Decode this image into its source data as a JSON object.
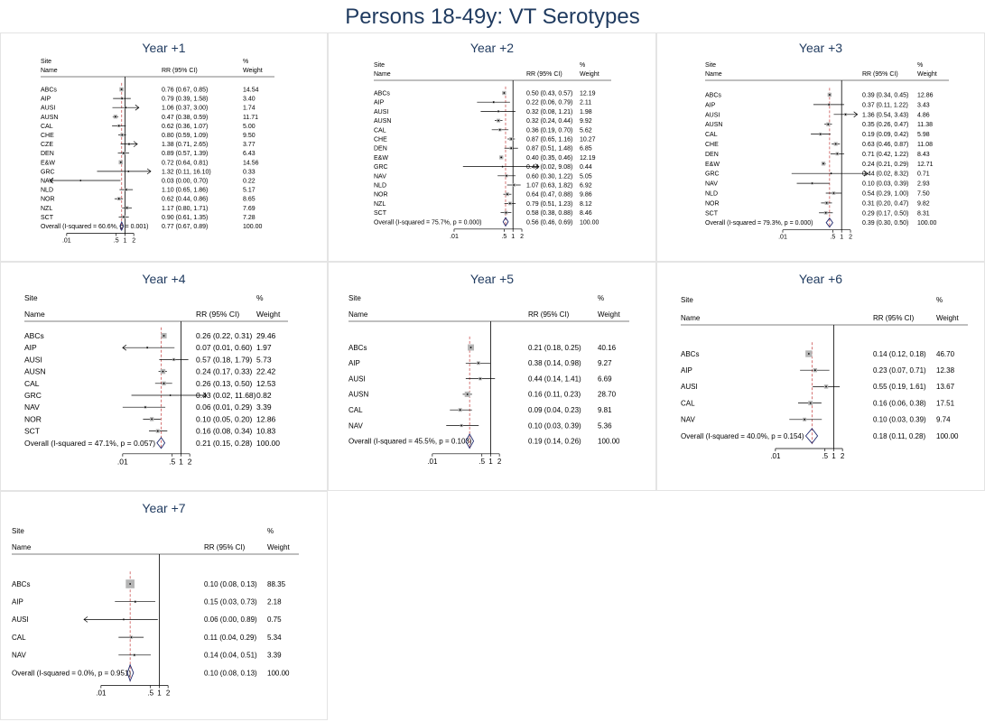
{
  "title": "Persons 18-49y: VT Serotypes",
  "headers": {
    "site": "Site",
    "name": "Name",
    "rr": "RR (95% CI)",
    "pct": "%",
    "weight": "Weight"
  },
  "chart_data": [
    {
      "type": "forest",
      "title": "Year +1",
      "x_scale": "log",
      "xlim": [
        0.004,
        5
      ],
      "x_ticks": [
        ".01",
        ".5",
        "1",
        "2"
      ],
      "x_tick_values": [
        0.01,
        0.5,
        1,
        2
      ],
      "reference_line": 1,
      "pooled_line": 0.77,
      "rows": [
        {
          "label": "ABCs",
          "rr": 0.76,
          "lo": 0.67,
          "hi": 0.85,
          "weight": 14.54,
          "text": "0.76 (0.67, 0.85)",
          "weight_text": "14.54"
        },
        {
          "label": "AIP",
          "rr": 0.79,
          "lo": 0.39,
          "hi": 1.58,
          "weight": 3.4,
          "text": "0.79 (0.39, 1.58)",
          "weight_text": "3.40"
        },
        {
          "label": "AUSI",
          "rr": 1.06,
          "lo": 0.37,
          "hi": 3.0,
          "weight": 1.74,
          "text": "1.06 (0.37, 3.00)",
          "weight_text": "1.74",
          "arrow_right": true
        },
        {
          "label": "AUSN",
          "rr": 0.47,
          "lo": 0.38,
          "hi": 0.59,
          "weight": 11.71,
          "text": "0.47 (0.38, 0.59)",
          "weight_text": "11.71"
        },
        {
          "label": "CAL",
          "rr": 0.62,
          "lo": 0.36,
          "hi": 1.07,
          "weight": 5.0,
          "text": "0.62 (0.36, 1.07)",
          "weight_text": "5.00"
        },
        {
          "label": "CHE",
          "rr": 0.8,
          "lo": 0.59,
          "hi": 1.09,
          "weight": 9.5,
          "text": "0.80 (0.59, 1.09)",
          "weight_text": "9.50"
        },
        {
          "label": "CZE",
          "rr": 1.38,
          "lo": 0.71,
          "hi": 2.65,
          "weight": 3.77,
          "text": "1.38 (0.71, 2.65)",
          "weight_text": "3.77",
          "arrow_right": true
        },
        {
          "label": "DEN",
          "rr": 0.89,
          "lo": 0.57,
          "hi": 1.39,
          "weight": 6.43,
          "text": "0.89 (0.57, 1.39)",
          "weight_text": "6.43"
        },
        {
          "label": "E&W",
          "rr": 0.72,
          "lo": 0.64,
          "hi": 0.81,
          "weight": 14.56,
          "text": "0.72 (0.64, 0.81)",
          "weight_text": "14.56"
        },
        {
          "label": "GRC",
          "rr": 1.32,
          "lo": 0.11,
          "hi": 16.1,
          "weight": 0.33,
          "text": "1.32 (0.11, 16.10)",
          "weight_text": "0.33",
          "arrow_right": true
        },
        {
          "label": "NAV",
          "rr": 0.03,
          "lo": 0.0,
          "hi": 0.7,
          "weight": 0.22,
          "text": "0.03 (0.00, 0.70)",
          "weight_text": "0.22",
          "arrow_left": true
        },
        {
          "label": "NLD",
          "rr": 1.1,
          "lo": 0.65,
          "hi": 1.86,
          "weight": 5.17,
          "text": "1.10 (0.65, 1.86)",
          "weight_text": "5.17"
        },
        {
          "label": "NOR",
          "rr": 0.62,
          "lo": 0.44,
          "hi": 0.86,
          "weight": 8.65,
          "text": "0.62 (0.44, 0.86)",
          "weight_text": "8.65"
        },
        {
          "label": "NZL",
          "rr": 1.17,
          "lo": 0.8,
          "hi": 1.71,
          "weight": 7.69,
          "text": "1.17 (0.80, 1.71)",
          "weight_text": "7.69"
        },
        {
          "label": "SCT",
          "rr": 0.9,
          "lo": 0.61,
          "hi": 1.35,
          "weight": 7.28,
          "text": "0.90 (0.61, 1.35)",
          "weight_text": "7.28"
        }
      ],
      "overall": {
        "label": "Overall  (I-squared = 60.6%, p = 0.001)",
        "rr": 0.77,
        "lo": 0.67,
        "hi": 0.89,
        "text": "0.77 (0.67, 0.89)",
        "weight_text": "100.00"
      }
    },
    {
      "type": "forest",
      "title": "Year +2",
      "x_scale": "log",
      "xlim": [
        0.004,
        5
      ],
      "x_ticks": [
        ".01",
        ".5",
        "1",
        "2"
      ],
      "x_tick_values": [
        0.01,
        0.5,
        1,
        2
      ],
      "reference_line": 1,
      "pooled_line": 0.56,
      "rows": [
        {
          "label": "ABCs",
          "rr": 0.5,
          "lo": 0.43,
          "hi": 0.57,
          "weight": 12.19,
          "text": "0.50 (0.43, 0.57)",
          "weight_text": "12.19"
        },
        {
          "label": "AIP",
          "rr": 0.22,
          "lo": 0.06,
          "hi": 0.79,
          "weight": 2.11,
          "text": "0.22 (0.06, 0.79)",
          "weight_text": "2.11"
        },
        {
          "label": "AUSI",
          "rr": 0.32,
          "lo": 0.08,
          "hi": 1.21,
          "weight": 1.98,
          "text": "0.32 (0.08, 1.21)",
          "weight_text": "1.98"
        },
        {
          "label": "AUSN",
          "rr": 0.32,
          "lo": 0.24,
          "hi": 0.44,
          "weight": 9.92,
          "text": "0.32 (0.24, 0.44)",
          "weight_text": "9.92"
        },
        {
          "label": "CAL",
          "rr": 0.36,
          "lo": 0.19,
          "hi": 0.7,
          "weight": 5.62,
          "text": "0.36 (0.19, 0.70)",
          "weight_text": "5.62"
        },
        {
          "label": "CHE",
          "rr": 0.87,
          "lo": 0.65,
          "hi": 1.16,
          "weight": 10.27,
          "text": "0.87 (0.65, 1.16)",
          "weight_text": "10.27"
        },
        {
          "label": "DEN",
          "rr": 0.87,
          "lo": 0.51,
          "hi": 1.48,
          "weight": 6.85,
          "text": "0.87 (0.51, 1.48)",
          "weight_text": "6.85"
        },
        {
          "label": "E&W",
          "rr": 0.4,
          "lo": 0.35,
          "hi": 0.46,
          "weight": 12.19,
          "text": "0.40 (0.35, 0.46)",
          "weight_text": "12.19"
        },
        {
          "label": "GRC",
          "rr": 0.44,
          "lo": 0.02,
          "hi": 9.08,
          "weight": 0.44,
          "text": "0.44 (0.02, 9.08)",
          "weight_text": "0.44",
          "arrow_right": true
        },
        {
          "label": "NAV",
          "rr": 0.6,
          "lo": 0.3,
          "hi": 1.22,
          "weight": 5.05,
          "text": "0.60 (0.30, 1.22)",
          "weight_text": "5.05"
        },
        {
          "label": "NLD",
          "rr": 1.07,
          "lo": 0.63,
          "hi": 1.82,
          "weight": 6.92,
          "text": "1.07 (0.63, 1.82)",
          "weight_text": "6.92"
        },
        {
          "label": "NOR",
          "rr": 0.64,
          "lo": 0.47,
          "hi": 0.88,
          "weight": 9.86,
          "text": "0.64 (0.47, 0.88)",
          "weight_text": "9.86"
        },
        {
          "label": "NZL",
          "rr": 0.79,
          "lo": 0.51,
          "hi": 1.23,
          "weight": 8.12,
          "text": "0.79 (0.51, 1.23)",
          "weight_text": "8.12"
        },
        {
          "label": "SCT",
          "rr": 0.58,
          "lo": 0.38,
          "hi": 0.88,
          "weight": 8.46,
          "text": "0.58 (0.38, 0.88)",
          "weight_text": "8.46"
        }
      ],
      "overall": {
        "label": "Overall  (I-squared = 75.7%, p = 0.000)",
        "rr": 0.56,
        "lo": 0.46,
        "hi": 0.69,
        "text": "0.56 (0.46, 0.69)",
        "weight_text": "100.00"
      }
    },
    {
      "type": "forest",
      "title": "Year +3",
      "x_scale": "log",
      "xlim": [
        0.004,
        5
      ],
      "x_ticks": [
        ".01",
        ".5",
        "1",
        "2"
      ],
      "x_tick_values": [
        0.01,
        0.5,
        1,
        2
      ],
      "reference_line": 1,
      "pooled_line": 0.39,
      "rows": [
        {
          "label": "ABCs",
          "rr": 0.39,
          "lo": 0.34,
          "hi": 0.45,
          "weight": 12.86,
          "text": "0.39 (0.34, 0.45)",
          "weight_text": "12.86"
        },
        {
          "label": "AIP",
          "rr": 0.37,
          "lo": 0.11,
          "hi": 1.22,
          "weight": 3.43,
          "text": "0.37 (0.11, 1.22)",
          "weight_text": "3.43"
        },
        {
          "label": "AUSI",
          "rr": 1.36,
          "lo": 0.54,
          "hi": 3.43,
          "weight": 4.86,
          "text": "1.36 (0.54, 3.43)",
          "weight_text": "4.86",
          "arrow_right": true
        },
        {
          "label": "AUSN",
          "rr": 0.35,
          "lo": 0.26,
          "hi": 0.47,
          "weight": 11.38,
          "text": "0.35 (0.26, 0.47)",
          "weight_text": "11.38"
        },
        {
          "label": "CAL",
          "rr": 0.19,
          "lo": 0.09,
          "hi": 0.42,
          "weight": 5.98,
          "text": "0.19 (0.09, 0.42)",
          "weight_text": "5.98"
        },
        {
          "label": "CHE",
          "rr": 0.63,
          "lo": 0.46,
          "hi": 0.87,
          "weight": 11.08,
          "text": "0.63 (0.46, 0.87)",
          "weight_text": "11.08"
        },
        {
          "label": "DEN",
          "rr": 0.71,
          "lo": 0.42,
          "hi": 1.22,
          "weight": 8.43,
          "text": "0.71 (0.42, 1.22)",
          "weight_text": "8.43"
        },
        {
          "label": "E&W",
          "rr": 0.24,
          "lo": 0.21,
          "hi": 0.29,
          "weight": 12.71,
          "text": "0.24 (0.21, 0.29)",
          "weight_text": "12.71"
        },
        {
          "label": "GRC",
          "rr": 0.44,
          "lo": 0.02,
          "hi": 8.32,
          "weight": 0.71,
          "text": "0.44 (0.02, 8.32)",
          "weight_text": "0.71",
          "arrow_right": true
        },
        {
          "label": "NAV",
          "rr": 0.1,
          "lo": 0.03,
          "hi": 0.39,
          "weight": 2.93,
          "text": "0.10 (0.03, 0.39)",
          "weight_text": "2.93"
        },
        {
          "label": "NLD",
          "rr": 0.54,
          "lo": 0.29,
          "hi": 1.0,
          "weight": 7.5,
          "text": "0.54 (0.29, 1.00)",
          "weight_text": "7.50"
        },
        {
          "label": "NOR",
          "rr": 0.31,
          "lo": 0.2,
          "hi": 0.47,
          "weight": 9.82,
          "text": "0.31 (0.20, 0.47)",
          "weight_text": "9.82"
        },
        {
          "label": "SCT",
          "rr": 0.29,
          "lo": 0.17,
          "hi": 0.5,
          "weight": 8.31,
          "text": "0.29 (0.17, 0.50)",
          "weight_text": "8.31"
        }
      ],
      "overall": {
        "label": "Overall  (I-squared = 79.3%, p = 0.000)",
        "rr": 0.39,
        "lo": 0.3,
        "hi": 0.5,
        "text": "0.39 (0.30, 0.50)",
        "weight_text": "100.00"
      }
    },
    {
      "type": "forest",
      "title": "Year +4",
      "x_scale": "log",
      "xlim": [
        0.004,
        5
      ],
      "x_ticks": [
        ".01",
        ".5",
        "1",
        "2"
      ],
      "x_tick_values": [
        0.01,
        0.5,
        1,
        2
      ],
      "reference_line": 1,
      "pooled_line": 0.21,
      "rows": [
        {
          "label": "ABCs",
          "rr": 0.26,
          "lo": 0.22,
          "hi": 0.31,
          "weight": 29.46,
          "text": "0.26 (0.22, 0.31)",
          "weight_text": "29.46"
        },
        {
          "label": "AIP",
          "rr": 0.07,
          "lo": 0.01,
          "hi": 0.6,
          "weight": 1.97,
          "text": "0.07 (0.01, 0.60)",
          "weight_text": "1.97",
          "arrow_left": true
        },
        {
          "label": "AUSI",
          "rr": 0.57,
          "lo": 0.18,
          "hi": 1.79,
          "weight": 5.73,
          "text": "0.57 (0.18, 1.79)",
          "weight_text": "5.73"
        },
        {
          "label": "AUSN",
          "rr": 0.24,
          "lo": 0.17,
          "hi": 0.33,
          "weight": 22.42,
          "text": "0.24 (0.17, 0.33)",
          "weight_text": "22.42"
        },
        {
          "label": "CAL",
          "rr": 0.26,
          "lo": 0.13,
          "hi": 0.5,
          "weight": 12.53,
          "text": "0.26 (0.13, 0.50)",
          "weight_text": "12.53"
        },
        {
          "label": "GRC",
          "rr": 0.43,
          "lo": 0.02,
          "hi": 11.68,
          "weight": 0.82,
          "text": "0.43 (0.02, 11.68)",
          "weight_text": "0.82",
          "arrow_right": true
        },
        {
          "label": "NAV",
          "rr": 0.06,
          "lo": 0.01,
          "hi": 0.29,
          "weight": 3.39,
          "text": "0.06 (0.01, 0.29)",
          "weight_text": "3.39"
        },
        {
          "label": "NOR",
          "rr": 0.1,
          "lo": 0.05,
          "hi": 0.2,
          "weight": 12.86,
          "text": "0.10 (0.05, 0.20)",
          "weight_text": "12.86"
        },
        {
          "label": "SCT",
          "rr": 0.16,
          "lo": 0.08,
          "hi": 0.34,
          "weight": 10.83,
          "text": "0.16 (0.08, 0.34)",
          "weight_text": "10.83"
        }
      ],
      "overall": {
        "label": "Overall  (I-squared = 47.1%, p = 0.057)",
        "rr": 0.21,
        "lo": 0.15,
        "hi": 0.28,
        "text": "0.21 (0.15, 0.28)",
        "weight_text": "100.00"
      }
    },
    {
      "type": "forest",
      "title": "Year +5",
      "x_scale": "log",
      "xlim": [
        0.004,
        5
      ],
      "x_ticks": [
        ".01",
        ".5",
        "1",
        "2"
      ],
      "x_tick_values": [
        0.01,
        0.5,
        1,
        2
      ],
      "reference_line": 1,
      "pooled_line": 0.19,
      "rows": [
        {
          "label": "ABCs",
          "rr": 0.21,
          "lo": 0.18,
          "hi": 0.25,
          "weight": 40.16,
          "text": "0.21 (0.18, 0.25)",
          "weight_text": "40.16"
        },
        {
          "label": "AIP",
          "rr": 0.38,
          "lo": 0.14,
          "hi": 0.98,
          "weight": 9.27,
          "text": "0.38 (0.14, 0.98)",
          "weight_text": "9.27"
        },
        {
          "label": "AUSI",
          "rr": 0.44,
          "lo": 0.14,
          "hi": 1.41,
          "weight": 6.69,
          "text": "0.44 (0.14, 1.41)",
          "weight_text": "6.69"
        },
        {
          "label": "AUSN",
          "rr": 0.16,
          "lo": 0.11,
          "hi": 0.23,
          "weight": 28.7,
          "text": "0.16 (0.11, 0.23)",
          "weight_text": "28.70"
        },
        {
          "label": "CAL",
          "rr": 0.09,
          "lo": 0.04,
          "hi": 0.23,
          "weight": 9.81,
          "text": "0.09 (0.04, 0.23)",
          "weight_text": "9.81"
        },
        {
          "label": "NAV",
          "rr": 0.1,
          "lo": 0.03,
          "hi": 0.39,
          "weight": 5.36,
          "text": "0.10 (0.03, 0.39)",
          "weight_text": "5.36"
        }
      ],
      "overall": {
        "label": "Overall  (I-squared = 45.5%, p = 0.103)",
        "rr": 0.19,
        "lo": 0.14,
        "hi": 0.26,
        "text": "0.19 (0.14, 0.26)",
        "weight_text": "100.00"
      }
    },
    {
      "type": "forest",
      "title": "Year +6",
      "x_scale": "log",
      "xlim": [
        0.004,
        5
      ],
      "x_ticks": [
        ".01",
        ".5",
        "1",
        "2"
      ],
      "x_tick_values": [
        0.01,
        0.5,
        1,
        2
      ],
      "reference_line": 1,
      "pooled_line": 0.18,
      "rows": [
        {
          "label": "ABCs",
          "rr": 0.14,
          "lo": 0.12,
          "hi": 0.18,
          "weight": 46.7,
          "text": "0.14 (0.12, 0.18)",
          "weight_text": "46.70"
        },
        {
          "label": "AIP",
          "rr": 0.23,
          "lo": 0.07,
          "hi": 0.71,
          "weight": 12.38,
          "text": "0.23 (0.07, 0.71)",
          "weight_text": "12.38"
        },
        {
          "label": "AUSI",
          "rr": 0.55,
          "lo": 0.19,
          "hi": 1.61,
          "weight": 13.67,
          "text": "0.55 (0.19, 1.61)",
          "weight_text": "13.67"
        },
        {
          "label": "CAL",
          "rr": 0.16,
          "lo": 0.06,
          "hi": 0.38,
          "weight": 17.51,
          "text": "0.16 (0.06, 0.38)",
          "weight_text": "17.51"
        },
        {
          "label": "NAV",
          "rr": 0.1,
          "lo": 0.03,
          "hi": 0.39,
          "weight": 9.74,
          "text": "0.10 (0.03, 0.39)",
          "weight_text": "9.74"
        }
      ],
      "overall": {
        "label": "Overall  (I-squared = 40.0%, p = 0.154)",
        "rr": 0.18,
        "lo": 0.11,
        "hi": 0.28,
        "text": "0.18 (0.11, 0.28)",
        "weight_text": "100.00"
      }
    },
    {
      "type": "forest",
      "title": "Year +7",
      "x_scale": "log",
      "xlim": [
        0.004,
        5
      ],
      "x_ticks": [
        ".01",
        ".5",
        "1",
        "2"
      ],
      "x_tick_values": [
        0.01,
        0.5,
        1,
        2
      ],
      "reference_line": 1,
      "pooled_line": 0.1,
      "rows": [
        {
          "label": "ABCs",
          "rr": 0.1,
          "lo": 0.08,
          "hi": 0.13,
          "weight": 88.35,
          "text": "0.10 (0.08, 0.13)",
          "weight_text": "88.35"
        },
        {
          "label": "AIP",
          "rr": 0.15,
          "lo": 0.03,
          "hi": 0.73,
          "weight": 2.18,
          "text": "0.15 (0.03, 0.73)",
          "weight_text": "2.18"
        },
        {
          "label": "AUSI",
          "rr": 0.06,
          "lo": 0.0,
          "hi": 0.89,
          "weight": 0.75,
          "text": "0.06 (0.00, 0.89)",
          "weight_text": "0.75",
          "arrow_left": true
        },
        {
          "label": "CAL",
          "rr": 0.11,
          "lo": 0.04,
          "hi": 0.29,
          "weight": 5.34,
          "text": "0.11 (0.04, 0.29)",
          "weight_text": "5.34"
        },
        {
          "label": "NAV",
          "rr": 0.14,
          "lo": 0.04,
          "hi": 0.51,
          "weight": 3.39,
          "text": "0.14 (0.04, 0.51)",
          "weight_text": "3.39"
        }
      ],
      "overall": {
        "label": "Overall  (I-squared = 0.0%, p = 0.951)",
        "rr": 0.1,
        "lo": 0.08,
        "hi": 0.13,
        "text": "0.10 (0.08, 0.13)",
        "weight_text": "100.00"
      }
    }
  ],
  "colors": {
    "title": "#1f3a5f",
    "diamond": "#1f2a6e",
    "pooled_line": "#c43b3b",
    "reference_line": "#000000",
    "ci_line": "#000000"
  }
}
